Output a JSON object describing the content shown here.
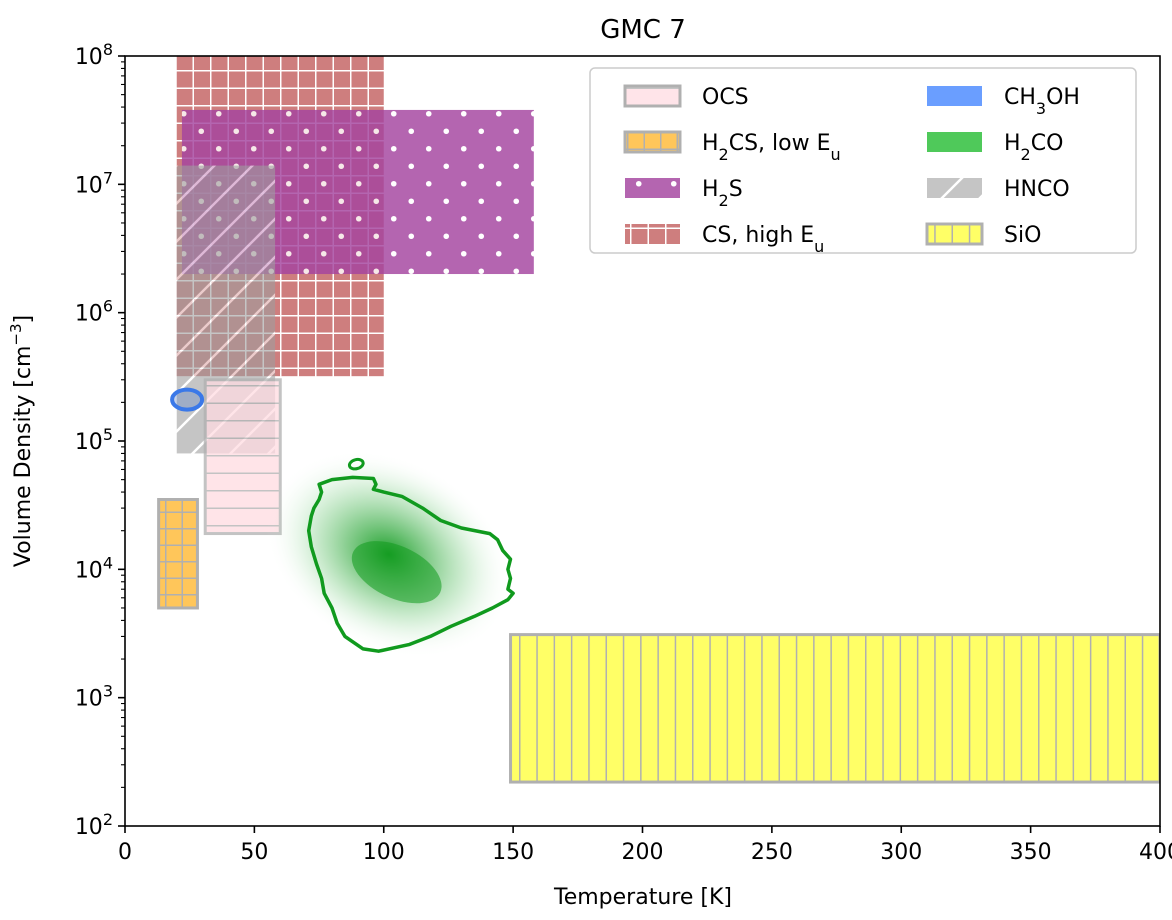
{
  "chart_data": {
    "type": "area",
    "title": "GMC 7",
    "xlabel": "Temperature [K]",
    "ylabel": "Volume Density [cm^-3]",
    "ylabel_parts": {
      "base": "Volume Density [cm",
      "sup": "−3",
      "end": "]"
    },
    "xlim": [
      0,
      400
    ],
    "ylim": [
      100,
      100000000
    ],
    "yscale": "log",
    "grid": false,
    "legend_position": "top-right",
    "x_ticks": [
      {
        "value": 0,
        "label": "0"
      },
      {
        "value": 50,
        "label": "50"
      },
      {
        "value": 100,
        "label": "100"
      },
      {
        "value": 150,
        "label": "150"
      },
      {
        "value": 200,
        "label": "200"
      },
      {
        "value": 250,
        "label": "250"
      },
      {
        "value": 300,
        "label": "300"
      },
      {
        "value": 350,
        "label": "350"
      },
      {
        "value": 400,
        "label": "400"
      }
    ],
    "y_ticks": [
      {
        "exponent": 2,
        "base": "10",
        "sup": "2"
      },
      {
        "exponent": 3,
        "base": "10",
        "sup": "3"
      },
      {
        "exponent": 4,
        "base": "10",
        "sup": "4"
      },
      {
        "exponent": 5,
        "base": "10",
        "sup": "5"
      },
      {
        "exponent": 6,
        "base": "10",
        "sup": "6"
      },
      {
        "exponent": 7,
        "base": "10",
        "sup": "7"
      },
      {
        "exponent": 8,
        "base": "10",
        "sup": "8"
      }
    ],
    "regions": [
      {
        "name": "CS, high Eu",
        "id": "cs-high-eu",
        "T": [
          20,
          100
        ],
        "n": [
          320000,
          100000000
        ],
        "fill": "#c87070",
        "edge": "#ffffff",
        "hatch": "grid",
        "alpha": 0.9
      },
      {
        "name": "H2S",
        "id": "h2s",
        "T": [
          22,
          158
        ],
        "n": [
          2000000,
          38000000
        ],
        "fill": "#a4439f",
        "edge": "#ffffff",
        "hatch": "dots",
        "alpha": 0.82
      },
      {
        "name": "HNCO",
        "id": "hnco",
        "T": [
          20,
          58
        ],
        "n": [
          80000,
          14000000
        ],
        "fill": "#9e9e9e",
        "edge": "#ffffff",
        "hatch": "diagonal",
        "alpha": 0.6
      },
      {
        "name": "OCS",
        "id": "ocs",
        "T": [
          31,
          60
        ],
        "n": [
          19000,
          300000
        ],
        "fill": "#ffdbe1",
        "edge": "#b0b0b0",
        "hatch": "horizontal",
        "alpha": 0.75
      },
      {
        "name": "H2CS, low Eu",
        "id": "h2cs-low-eu",
        "T": [
          13,
          28
        ],
        "n": [
          5000,
          35000
        ],
        "fill": "#ffc65a",
        "edge": "#b0b0b0",
        "hatch": "grid",
        "alpha": 1.0
      },
      {
        "name": "SiO",
        "id": "sio",
        "T": [
          149,
          400
        ],
        "n": [
          220,
          3100
        ],
        "fill": "#ffff66",
        "edge": "#b0b0b0",
        "hatch": "vertical",
        "alpha": 1.0
      }
    ],
    "ch3oh_ellipse": {
      "name": "CH3OH",
      "T": 24,
      "n": 210000,
      "color": "#3a78e8"
    },
    "h2co_contour": {
      "name": "H2CO",
      "color": "#109a1e",
      "peak": {
        "T": 105,
        "n": 9500
      },
      "outline": [
        [
          80,
          5000
        ],
        [
          77,
          6500
        ],
        [
          76,
          8500
        ],
        [
          74,
          11000
        ],
        [
          72,
          15000
        ],
        [
          71,
          20000
        ],
        [
          72,
          26000
        ],
        [
          73,
          30000
        ],
        [
          75,
          35000
        ],
        [
          76,
          40000
        ],
        [
          75,
          46000
        ],
        [
          80,
          50000
        ],
        [
          88,
          52000
        ],
        [
          96,
          51000
        ],
        [
          97,
          46000
        ],
        [
          96,
          42000
        ],
        [
          100,
          40000
        ],
        [
          107,
          37000
        ],
        [
          115,
          30000
        ],
        [
          122,
          24000
        ],
        [
          130,
          21000
        ],
        [
          141,
          19000
        ],
        [
          144,
          17000
        ],
        [
          146,
          14000
        ],
        [
          149,
          12000
        ],
        [
          148,
          10000
        ],
        [
          149,
          8500
        ],
        [
          148,
          7000
        ],
        [
          150,
          6500
        ],
        [
          148,
          5800
        ],
        [
          142,
          5000
        ],
        [
          135,
          4300
        ],
        [
          126,
          3600
        ],
        [
          118,
          3000
        ],
        [
          110,
          2600
        ],
        [
          98,
          2300
        ],
        [
          92,
          2400
        ],
        [
          85,
          3000
        ],
        [
          82,
          3800
        ],
        [
          80,
          5000
        ]
      ],
      "island": {
        "T": 89,
        "n": 66000
      }
    },
    "legend": [
      {
        "label_base": "OCS",
        "parts": [
          [
            "OCS",
            ""
          ]
        ],
        "swatch": "ocs"
      },
      {
        "label_base": "H2CS, low Eu",
        "parts": [
          [
            "H",
            ""
          ],
          [
            "2",
            "sub"
          ],
          [
            "CS, low E",
            ""
          ],
          [
            "u",
            "sub"
          ]
        ],
        "swatch": "h2cs-low-eu"
      },
      {
        "label_base": "H2S",
        "parts": [
          [
            "H",
            ""
          ],
          [
            "2",
            "sub"
          ],
          [
            "S",
            ""
          ]
        ],
        "swatch": "h2s"
      },
      {
        "label_base": "CS, high Eu",
        "parts": [
          [
            "CS, high E",
            ""
          ],
          [
            "u",
            "sub"
          ]
        ],
        "swatch": "cs-high-eu"
      },
      {
        "label_base": "CH3OH",
        "parts": [
          [
            "CH",
            ""
          ],
          [
            "3",
            "sub"
          ],
          [
            "OH",
            ""
          ]
        ],
        "swatch": "ch3oh"
      },
      {
        "label_base": "H2CO",
        "parts": [
          [
            "H",
            ""
          ],
          [
            "2",
            "sub"
          ],
          [
            "CO",
            ""
          ]
        ],
        "swatch": "h2co"
      },
      {
        "label_base": "HNCO",
        "parts": [
          [
            "HNCO",
            ""
          ]
        ],
        "swatch": "hnco"
      },
      {
        "label_base": "SiO",
        "parts": [
          [
            "SiO",
            ""
          ]
        ],
        "swatch": "sio"
      }
    ]
  }
}
